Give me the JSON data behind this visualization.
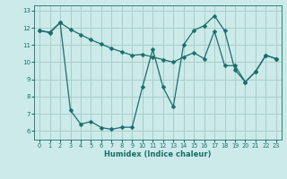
{
  "xlabel": "Humidex (Indice chaleur)",
  "bg_color": "#cceaea",
  "grid_color": "#aacccc",
  "line_color": "#1a6e6a",
  "xlim": [
    -0.5,
    23.5
  ],
  "ylim": [
    5.5,
    13.3
  ],
  "yticks": [
    6,
    7,
    8,
    9,
    10,
    11,
    12,
    13
  ],
  "xticks": [
    0,
    1,
    2,
    3,
    4,
    5,
    6,
    7,
    8,
    9,
    10,
    11,
    12,
    13,
    14,
    15,
    16,
    17,
    18,
    19,
    20,
    21,
    22,
    23
  ],
  "line1_x": [
    0,
    1,
    2,
    3,
    4,
    5,
    6,
    7,
    8,
    9,
    10,
    11,
    12,
    13,
    14,
    15,
    16,
    17,
    18,
    19,
    20,
    21,
    22,
    23
  ],
  "line1_y": [
    11.82,
    11.75,
    12.3,
    7.2,
    6.4,
    6.55,
    6.2,
    6.1,
    6.22,
    6.22,
    8.55,
    10.75,
    8.55,
    7.4,
    11.0,
    11.85,
    12.12,
    12.7,
    11.82,
    9.55,
    8.85,
    9.45,
    10.4,
    10.2
  ],
  "line2_x": [
    0,
    1,
    2,
    3,
    4,
    5,
    6,
    7,
    8,
    9,
    10,
    11,
    12,
    13,
    14,
    15,
    16,
    17,
    18,
    19,
    20,
    21,
    22,
    23
  ],
  "line2_y": [
    11.85,
    11.7,
    12.3,
    11.9,
    11.6,
    11.3,
    11.05,
    10.8,
    10.6,
    10.4,
    10.45,
    10.3,
    10.15,
    10.0,
    10.3,
    10.55,
    10.2,
    11.8,
    9.8,
    9.8,
    8.85,
    9.45,
    10.4,
    10.2
  ]
}
